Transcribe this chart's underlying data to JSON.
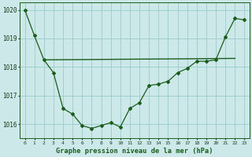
{
  "line1_x": [
    0,
    1,
    2,
    3,
    4,
    5,
    6,
    7,
    8,
    9,
    10,
    11,
    12,
    13,
    14,
    15,
    16,
    17,
    18,
    19,
    20,
    21,
    22,
    23
  ],
  "line1_y": [
    1020.0,
    1019.1,
    1018.25,
    1017.8,
    1016.55,
    1016.35,
    1015.95,
    1015.85,
    1015.95,
    1016.05,
    1015.9,
    1016.55,
    1016.75,
    1017.35,
    1017.4,
    1017.5,
    1017.8,
    1017.95,
    1018.2,
    1018.2,
    1018.25,
    1019.05,
    1019.7,
    1019.65
  ],
  "line2_x": [
    2,
    22
  ],
  "line2_y": [
    1018.25,
    1018.3
  ],
  "line_color": "#1a5c1a",
  "bg_color": "#cce8e8",
  "grid_color": "#9fcfcf",
  "xlabel": "Graphe pression niveau de la mer (hPa)",
  "ylim": [
    1015.5,
    1020.25
  ],
  "xlim": [
    -0.5,
    23.5
  ],
  "yticks": [
    1016,
    1017,
    1018,
    1019,
    1020
  ],
  "xticks": [
    0,
    1,
    2,
    3,
    4,
    5,
    6,
    7,
    8,
    9,
    10,
    11,
    12,
    13,
    14,
    15,
    16,
    17,
    18,
    19,
    20,
    21,
    22,
    23
  ]
}
